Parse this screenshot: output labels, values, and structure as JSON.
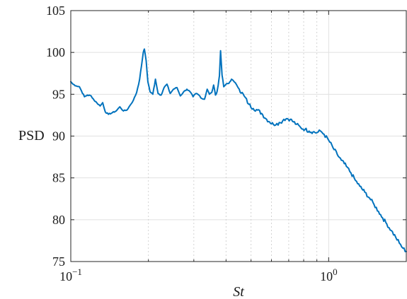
{
  "chart_data": {
    "type": "line",
    "xscale": "log",
    "xlim": [
      0.1,
      2.0
    ],
    "ylim": [
      75,
      105
    ],
    "grid": true,
    "xlabel": "St",
    "ylabel": "PSD",
    "x_ticks": [
      {
        "value": 0.1,
        "base": "10",
        "exp": "−1"
      },
      {
        "value": 1.0,
        "base": "10",
        "exp": "0"
      }
    ],
    "y_ticks": [
      75,
      80,
      85,
      90,
      95,
      100,
      105
    ],
    "series": [
      {
        "color": "#0072bd",
        "x": [
          0.1,
          0.102,
          0.105,
          0.108,
          0.11,
          0.113,
          0.116,
          0.12,
          0.123,
          0.126,
          0.13,
          0.133,
          0.136,
          0.14,
          0.145,
          0.15,
          0.155,
          0.16,
          0.165,
          0.17,
          0.175,
          0.18,
          0.185,
          0.188,
          0.191,
          0.193,
          0.196,
          0.199,
          0.203,
          0.208,
          0.213,
          0.218,
          0.224,
          0.23,
          0.236,
          0.243,
          0.25,
          0.258,
          0.266,
          0.274,
          0.282,
          0.29,
          0.298,
          0.306,
          0.314,
          0.322,
          0.33,
          0.338,
          0.345,
          0.352,
          0.358,
          0.364,
          0.369,
          0.373,
          0.377,
          0.381,
          0.386,
          0.392,
          0.4,
          0.41,
          0.42,
          0.43,
          0.44,
          0.45,
          0.47,
          0.49,
          0.51,
          0.53,
          0.55,
          0.57,
          0.59,
          0.61,
          0.63,
          0.65,
          0.67,
          0.69,
          0.71,
          0.73,
          0.75,
          0.78,
          0.81,
          0.84,
          0.87,
          0.9,
          0.93,
          0.96,
          1.0,
          1.04,
          1.08,
          1.12,
          1.17,
          1.22,
          1.27,
          1.32,
          1.38,
          1.44,
          1.5,
          1.56,
          1.62,
          1.68,
          1.75,
          1.82,
          1.88,
          1.94,
          2.0
        ],
        "y": [
          96.5,
          96.2,
          96.0,
          95.9,
          95.4,
          94.7,
          94.9,
          94.8,
          94.3,
          94.0,
          93.6,
          94.0,
          92.9,
          92.6,
          92.8,
          93.0,
          93.5,
          93.0,
          93.1,
          93.7,
          94.3,
          95.2,
          96.8,
          98.4,
          100.0,
          100.4,
          99.0,
          96.5,
          95.3,
          95.0,
          96.8,
          95.1,
          94.9,
          95.8,
          96.2,
          95.1,
          95.6,
          95.8,
          94.8,
          95.3,
          95.6,
          95.3,
          94.7,
          95.1,
          94.9,
          94.5,
          94.4,
          95.6,
          95.0,
          95.2,
          96.1,
          94.9,
          95.3,
          96.1,
          97.2,
          100.2,
          97.3,
          95.9,
          96.2,
          96.3,
          96.8,
          96.5,
          96.1,
          95.6,
          94.8,
          93.8,
          93.3,
          93.1,
          92.7,
          92.1,
          91.7,
          91.4,
          91.5,
          91.6,
          92.0,
          92.1,
          92.0,
          91.7,
          91.4,
          91.0,
          90.8,
          90.6,
          90.5,
          90.4,
          90.6,
          90.2,
          89.5,
          88.6,
          87.8,
          87.1,
          86.4,
          85.6,
          84.7,
          84.0,
          83.3,
          82.6,
          81.8,
          81.0,
          80.2,
          79.5,
          78.7,
          77.9,
          77.2,
          76.6,
          76.2
        ]
      }
    ]
  }
}
